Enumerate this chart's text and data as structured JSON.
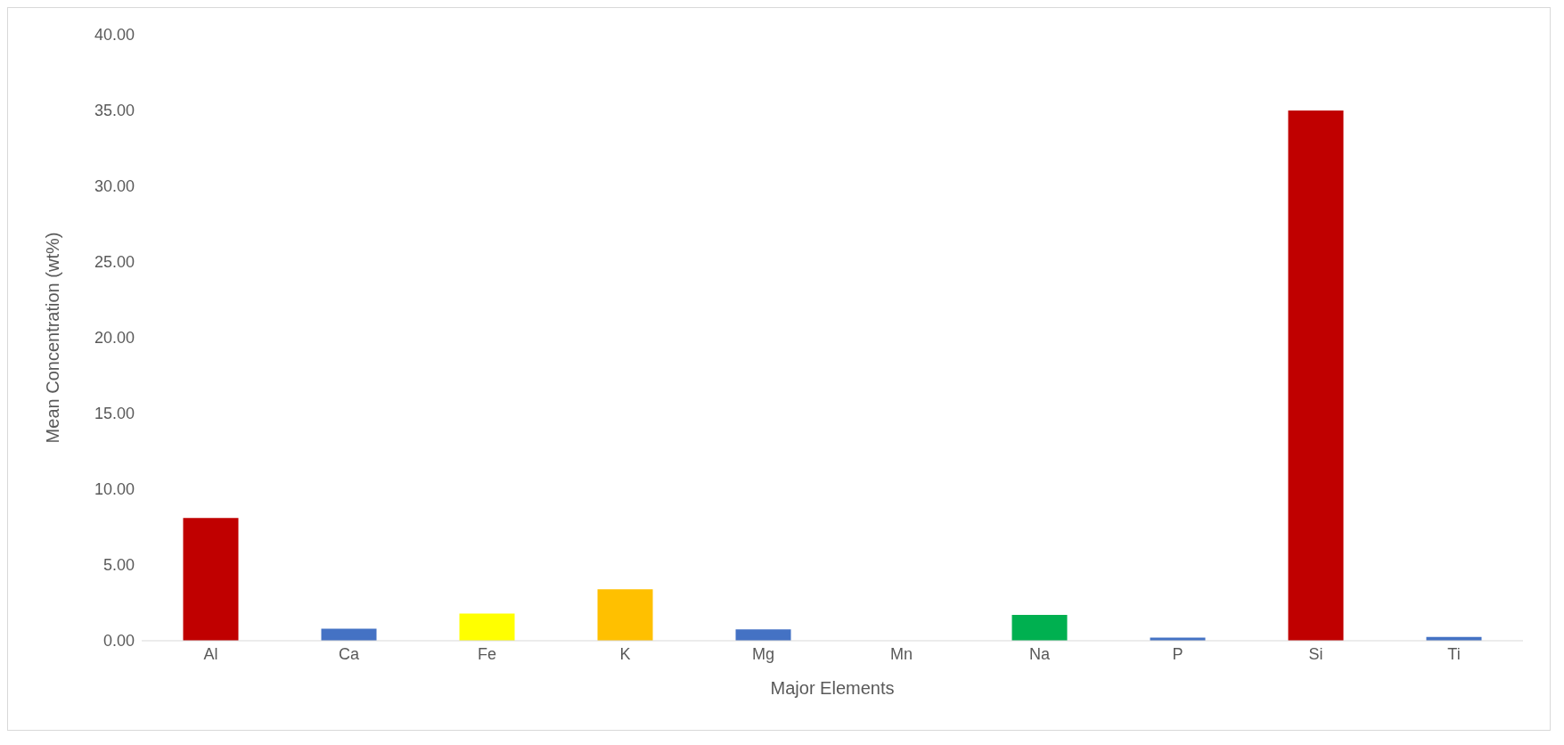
{
  "chart_data": {
    "type": "bar",
    "xlabel": "Major Elements",
    "ylabel": "Mean Concentration (wt%)",
    "categories": [
      "Al",
      "Ca",
      "Fe",
      "K",
      "Mg",
      "Mn",
      "Na",
      "P",
      "Si",
      "Ti"
    ],
    "values": [
      8.1,
      0.8,
      1.8,
      3.4,
      0.75,
      0,
      1.7,
      0.2,
      35.0,
      0.25
    ],
    "colors": [
      "#c00000",
      "#4472c4",
      "#ffff00",
      "#ffc000",
      "#4472c4",
      "#4472c4",
      "#00b050",
      "#4472c4",
      "#c00000",
      "#4472c4"
    ],
    "ylim": [
      0,
      40
    ],
    "yticks": [
      {
        "value": 0,
        "label": "0.00"
      },
      {
        "value": 5,
        "label": "5.00"
      },
      {
        "value": 10,
        "label": "10.00"
      },
      {
        "value": 15,
        "label": "15.00"
      },
      {
        "value": 20,
        "label": "20.00"
      },
      {
        "value": 25,
        "label": "25.00"
      },
      {
        "value": 30,
        "label": "30.00"
      },
      {
        "value": 35,
        "label": "35.00"
      },
      {
        "value": 40,
        "label": "40.00"
      }
    ],
    "grid": false,
    "legend": false
  }
}
